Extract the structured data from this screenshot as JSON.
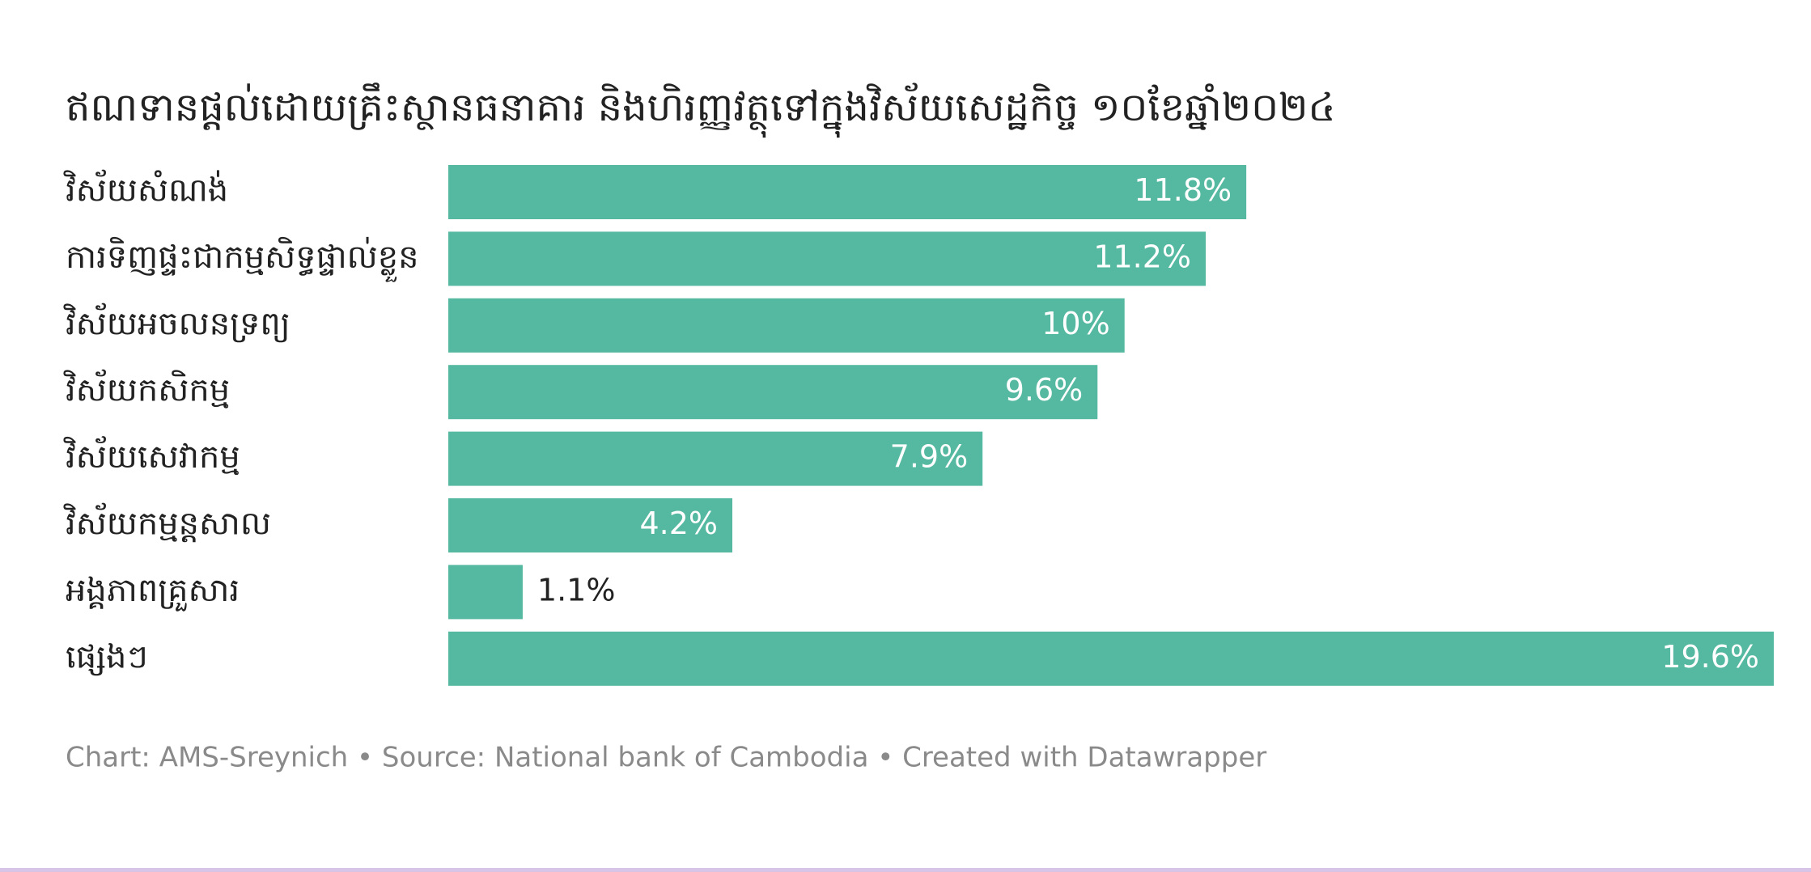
{
  "chart_data": {
    "type": "bar",
    "orientation": "horizontal",
    "title": "ឥណទានផ្តល់ដោយគ្រឹះស្ថានធនាគារ និងហិរញ្ញវត្ថុទៅក្នុងវិស័យសេដ្ឋកិច្ច ១០ខែឆ្នាំ២០២៤",
    "categories": [
      "វិស័យសំណង់",
      "ការទិញផ្ទះជាកម្មសិទ្ធផ្ទាល់ខ្លួន",
      "វិស័យអចលនទ្រព្យ",
      "វិស័យកសិកម្ម",
      "វិស័យសេវាកម្ម",
      "វិស័យកម្មន្តសាល",
      "អង្គភាពគ្រួសារ",
      "ផ្សេងៗ"
    ],
    "values": [
      11.8,
      11.2,
      10,
      9.6,
      7.9,
      4.2,
      1.1,
      19.6
    ],
    "value_labels": [
      "11.8%",
      "11.2%",
      "10%",
      "9.6%",
      "7.9%",
      "4.2%",
      "1.1%",
      "19.6%"
    ],
    "color": "#55b8a0",
    "footer": "Chart: AMS-Sreynich • Source: National bank of Cambodia • Created with Datawrapper"
  }
}
